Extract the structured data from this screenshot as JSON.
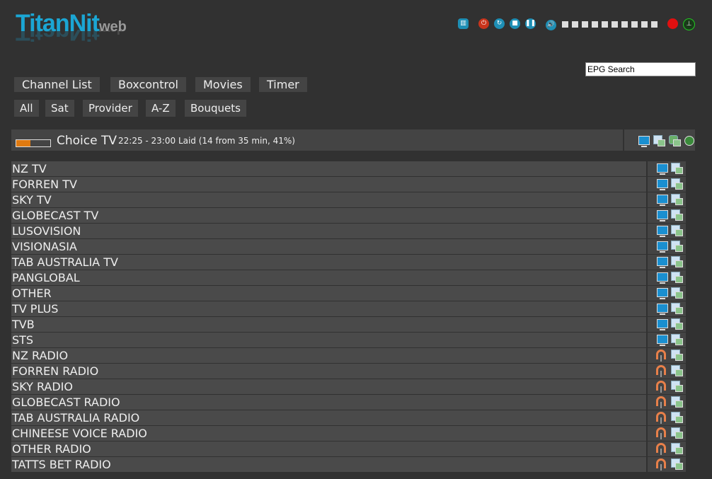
{
  "logo": {
    "brand": "TitanNit",
    "suffix": "web"
  },
  "toolbar": {
    "icons": [
      "remote-icon",
      "power-icon",
      "refresh-icon",
      "stop-icon",
      "pause-icon",
      "volume-icon"
    ],
    "volume_level": 0,
    "volume_steps": 10,
    "record": "record-icon",
    "signal": "signal-icon"
  },
  "search": {
    "value": "EPG Search"
  },
  "menu": [
    "Channel List",
    "Boxcontrol",
    "Movies",
    "Timer"
  ],
  "filters": [
    "All",
    "Sat",
    "Provider",
    "A-Z",
    "Bouquets"
  ],
  "now": {
    "channel": "Choice TV",
    "info": "22:25 - 23:00 Laid (14 from 35 min, 41%)",
    "progress": 41,
    "progress_color": "#e07a10"
  },
  "channels": [
    {
      "name": "NZ TV",
      "type": "tv"
    },
    {
      "name": "FORREN TV",
      "type": "tv"
    },
    {
      "name": "SKY TV",
      "type": "tv"
    },
    {
      "name": "GLOBECAST TV",
      "type": "tv"
    },
    {
      "name": "LUSOVISION",
      "type": "tv"
    },
    {
      "name": "VISIONASIA",
      "type": "tv"
    },
    {
      "name": "TAB AUSTRALIA TV",
      "type": "tv"
    },
    {
      "name": "PANGLOBAL",
      "type": "tv"
    },
    {
      "name": "OTHER",
      "type": "tv"
    },
    {
      "name": "TV PLUS",
      "type": "tv"
    },
    {
      "name": "TVB",
      "type": "tv"
    },
    {
      "name": "STS",
      "type": "tv"
    },
    {
      "name": "NZ RADIO",
      "type": "radio"
    },
    {
      "name": "FORREN RADIO",
      "type": "radio"
    },
    {
      "name": "SKY RADIO",
      "type": "radio"
    },
    {
      "name": "GLOBECAST RADIO",
      "type": "radio"
    },
    {
      "name": "TAB AUSTRALIA RADIO",
      "type": "radio"
    },
    {
      "name": "CHINEESE VOICE RADIO",
      "type": "radio"
    },
    {
      "name": "OTHER RADIO",
      "type": "radio"
    },
    {
      "name": "TATTS BET RADIO",
      "type": "radio"
    }
  ]
}
